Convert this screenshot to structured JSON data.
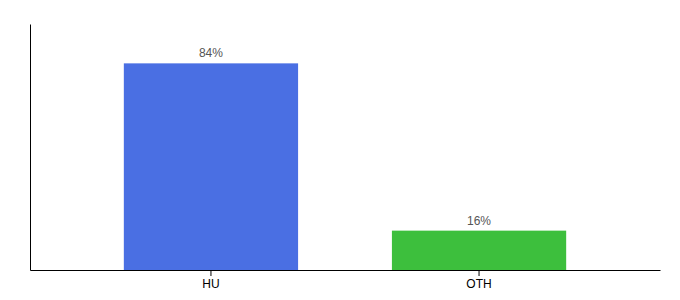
{
  "chart_data": {
    "type": "bar",
    "categories": [
      "HU",
      "OTH"
    ],
    "values": [
      84,
      16
    ],
    "value_labels": [
      "84%",
      "16%"
    ],
    "colors": [
      "#4A6FE3",
      "#3DBF3D"
    ],
    "ylim": [
      0,
      100
    ],
    "data_labels": true,
    "tick_labels": "x",
    "grid": false
  }
}
